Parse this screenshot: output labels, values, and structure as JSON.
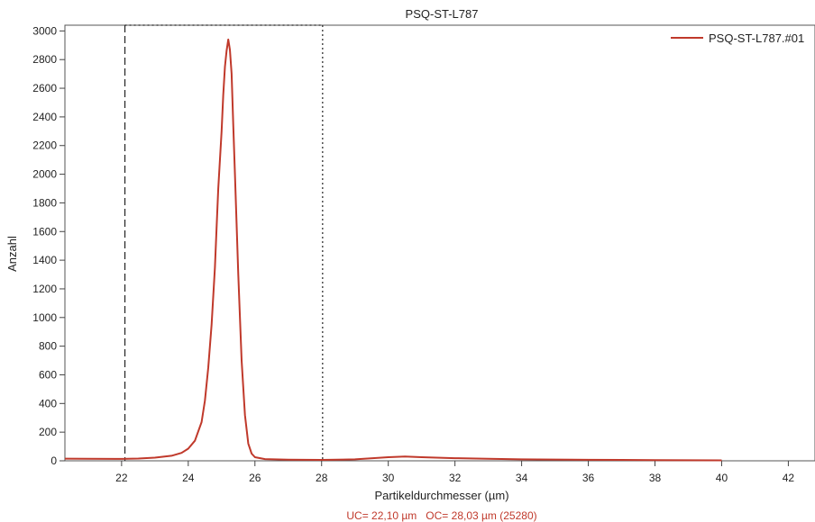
{
  "chart_data": {
    "type": "line",
    "title": "PSQ-ST-L787",
    "xlabel": "Partikeldurchmesser (µm)",
    "ylabel": "Anzahl",
    "xlim": [
      20.3,
      42.8
    ],
    "ylim": [
      0,
      3040
    ],
    "xticks": [
      22,
      24,
      26,
      28,
      30,
      32,
      34,
      36,
      38,
      40,
      42
    ],
    "yticks": [
      0,
      200,
      400,
      600,
      800,
      1000,
      1200,
      1400,
      1600,
      1800,
      2000,
      2200,
      2400,
      2600,
      2800,
      3000
    ],
    "legend_position": "top-right",
    "grid": false,
    "series": [
      {
        "name": "PSQ-ST-L787.#01",
        "color": "#c0392b",
        "x": [
          20.3,
          21.0,
          22.0,
          22.5,
          23.0,
          23.5,
          23.8,
          24.0,
          24.2,
          24.4,
          24.5,
          24.6,
          24.7,
          24.8,
          24.85,
          24.9,
          25.0,
          25.05,
          25.1,
          25.15,
          25.2,
          25.25,
          25.3,
          25.35,
          25.4,
          25.5,
          25.6,
          25.7,
          25.8,
          25.9,
          26.0,
          26.3,
          27.0,
          28.0,
          29.0,
          30.0,
          30.5,
          31.0,
          32.0,
          33.0,
          34.0,
          35.0,
          36.0,
          37.0,
          38.0,
          39.0,
          40.0
        ],
        "y": [
          15,
          14,
          13,
          16,
          22,
          35,
          55,
          85,
          140,
          270,
          420,
          650,
          950,
          1350,
          1620,
          1900,
          2300,
          2550,
          2750,
          2860,
          2940,
          2870,
          2700,
          2350,
          2000,
          1300,
          700,
          320,
          120,
          50,
          25,
          12,
          8,
          6,
          10,
          25,
          30,
          25,
          18,
          14,
          10,
          9,
          7,
          6,
          5,
          4,
          3
        ]
      }
    ],
    "cut_lines": [
      {
        "x": 22.1,
        "style": "dashed"
      },
      {
        "x": 28.03,
        "style": "dotted"
      }
    ],
    "annotation": "UC= 22,10 µm   OC= 28,03 µm (25280)"
  }
}
